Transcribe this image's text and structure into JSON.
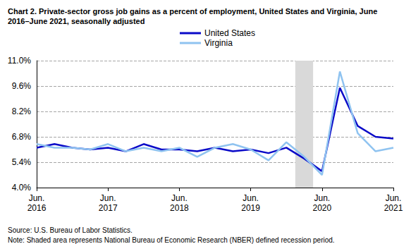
{
  "chart_data": {
    "type": "line",
    "title": "Chart 2. Private-sector gross job gains as a percent of employment, United States and Virginia, June 2016–June 2021, seasonally adjusted",
    "source": "Source: U.S. Bureau of Labor Statistics.",
    "note": "Note: Shaded area represents National Bureau of Economic Research (NBER) defined recession period.",
    "categories": [
      "Jun.\n2016",
      null,
      null,
      null,
      "Jun.\n2017",
      null,
      null,
      null,
      "Jun.\n2018",
      null,
      null,
      null,
      "Jun.\n2019",
      null,
      null,
      null,
      "Jun.\n2020",
      null,
      null,
      null,
      "Jun.\n2021"
    ],
    "series": [
      {
        "name": "United States",
        "color": "#0a0ac8",
        "values": [
          6.2,
          6.4,
          6.2,
          6.1,
          6.2,
          6.0,
          6.4,
          6.1,
          6.1,
          6.0,
          6.2,
          6.0,
          6.1,
          5.9,
          6.2,
          5.6,
          4.9,
          9.5,
          7.4,
          6.8,
          6.7
        ]
      },
      {
        "name": "Virginia",
        "color": "#8fc3f0",
        "values": [
          6.4,
          6.2,
          6.2,
          6.1,
          6.4,
          6.0,
          6.2,
          6.0,
          6.2,
          5.7,
          6.2,
          6.4,
          6.1,
          5.5,
          6.5,
          5.7,
          4.7,
          10.4,
          7.0,
          6.0,
          6.2
        ]
      }
    ],
    "recession": [
      14.5,
      15.5
    ],
    "ylim": [
      4.0,
      11.0
    ],
    "yticks": [
      {
        "value": 4.0,
        "label": "4.0%"
      },
      {
        "value": 5.4,
        "label": "5.4%"
      },
      {
        "value": 6.8,
        "label": "6.8%"
      },
      {
        "value": 8.2,
        "label": "8.2%"
      },
      {
        "value": 9.6,
        "label": "9.6%"
      },
      {
        "value": 11.0,
        "label": "11.0%"
      }
    ],
    "grid": true,
    "legend": "top"
  }
}
